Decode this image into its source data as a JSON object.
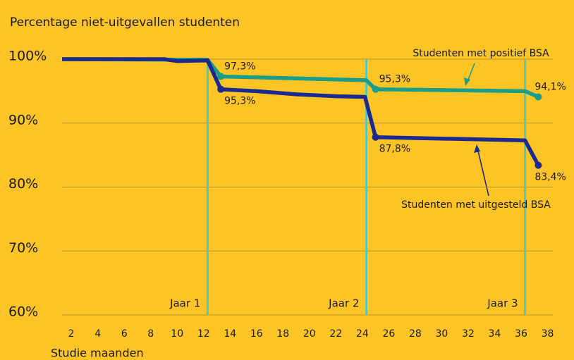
{
  "chart_data": {
    "type": "line",
    "title": "Percentage niet-uitgevallen studenten",
    "x_label": "Studie maanden",
    "xlim": [
      1.3,
      38.4
    ],
    "xticks": [
      2,
      4,
      6,
      8,
      10,
      12,
      14,
      16,
      18,
      20,
      22,
      24,
      26,
      28,
      30,
      32,
      34,
      36,
      38
    ],
    "ylim": [
      60,
      100
    ],
    "yticks": [
      {
        "value": 60,
        "label": "60%"
      },
      {
        "value": 70,
        "label": "70%"
      },
      {
        "value": 80,
        "label": "80%"
      },
      {
        "value": 90,
        "label": "90%"
      },
      {
        "value": 100,
        "label": "100%"
      }
    ],
    "grid": true,
    "vlines": [
      {
        "x": 12.3,
        "label": "Jaar 1"
      },
      {
        "x": 24.3,
        "label": "Jaar 2"
      },
      {
        "x": 36.3,
        "label": "Jaar 3"
      }
    ],
    "series": [
      {
        "name": "Studenten met positief BSA",
        "color": "#1A9E8A",
        "x": [
          1.3,
          12.3,
          13.3,
          24.3,
          25.0,
          36.3,
          37.3
        ],
        "values": [
          100,
          99.9,
          97.3,
          96.7,
          95.3,
          95.0,
          94.1
        ],
        "value_labels": [
          null,
          null,
          "97,3%",
          null,
          "95,3%",
          null,
          "94,1%"
        ]
      },
      {
        "name": "Studenten met uitgesteld BSA",
        "color": "#1B2A8F",
        "x": [
          1.3,
          9.0,
          10.0,
          12.3,
          13.3,
          16.0,
          19.0,
          22.0,
          24.2,
          25.0,
          36.3,
          37.3
        ],
        "values": [
          100,
          100,
          99.7,
          99.8,
          95.3,
          95.0,
          94.5,
          94.2,
          94.1,
          87.8,
          87.3,
          83.4
        ],
        "value_labels": [
          null,
          null,
          null,
          null,
          "95,3%",
          null,
          null,
          null,
          null,
          "87,8%",
          null,
          "83,4%"
        ]
      }
    ]
  }
}
